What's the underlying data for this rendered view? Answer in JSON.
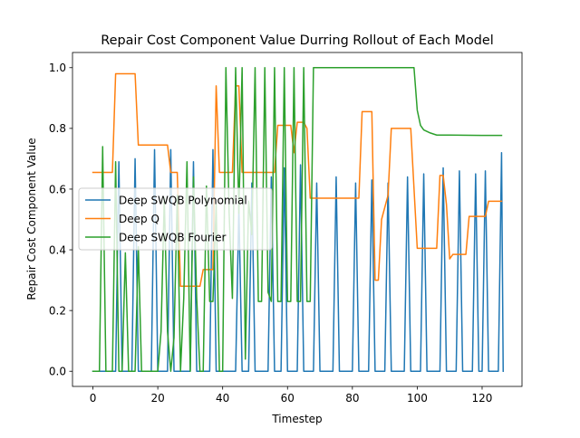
{
  "chart_data": {
    "type": "line",
    "title": "Repair Cost Component Value Durring Rollout of Each Model",
    "xlabel": "Timestep",
    "ylabel": "Repair Cost Component Value",
    "xlim": [
      -6.3,
      132.3
    ],
    "ylim": [
      -0.05,
      1.05
    ],
    "xticks": [
      0,
      20,
      40,
      60,
      80,
      100,
      120
    ],
    "yticks": [
      0.0,
      0.2,
      0.4,
      0.6,
      0.8,
      1.0
    ],
    "xtick_labels": [
      "0",
      "20",
      "40",
      "60",
      "80",
      "100",
      "120"
    ],
    "ytick_labels": [
      "0.0",
      "0.2",
      "0.4",
      "0.6",
      "0.8",
      "1.0"
    ],
    "grid": false,
    "legend": "center-left",
    "series": [
      {
        "name": "Deep SWQB Polynomial",
        "color": "#1f77b4",
        "points": [
          [
            0,
            0
          ],
          [
            2,
            0
          ],
          [
            3,
            0
          ],
          [
            6,
            0
          ],
          [
            7,
            0
          ],
          [
            8,
            0.69
          ],
          [
            9,
            0
          ],
          [
            12,
            0
          ],
          [
            13,
            0.7
          ],
          [
            14,
            0
          ],
          [
            18,
            0
          ],
          [
            19,
            0.73
          ],
          [
            20,
            0
          ],
          [
            23,
            0
          ],
          [
            24,
            0.73
          ],
          [
            25,
            0
          ],
          [
            30,
            0
          ],
          [
            31,
            0.69
          ],
          [
            32,
            0
          ],
          [
            36,
            0
          ],
          [
            37,
            0.73
          ],
          [
            38,
            0
          ],
          [
            44,
            0
          ],
          [
            45,
            0.54
          ],
          [
            46,
            0
          ],
          [
            48,
            0
          ],
          [
            49,
            0.62
          ],
          [
            50,
            0
          ],
          [
            54,
            0
          ],
          [
            55,
            0.64
          ],
          [
            56,
            0
          ],
          [
            58,
            0
          ],
          [
            59,
            0.67
          ],
          [
            60,
            0
          ],
          [
            63,
            0
          ],
          [
            64,
            0.68
          ],
          [
            65,
            0
          ],
          [
            68,
            0
          ],
          [
            69,
            0.62
          ],
          [
            70,
            0
          ],
          [
            74,
            0
          ],
          [
            75,
            0.64
          ],
          [
            76,
            0
          ],
          [
            80,
            0
          ],
          [
            81,
            0.62
          ],
          [
            82,
            0
          ],
          [
            85,
            0
          ],
          [
            86,
            0.63
          ],
          [
            87,
            0
          ],
          [
            90,
            0
          ],
          [
            91,
            0.62
          ],
          [
            92,
            0
          ],
          [
            96,
            0
          ],
          [
            97,
            0.64
          ],
          [
            98,
            0
          ],
          [
            101,
            0
          ],
          [
            102,
            0.65
          ],
          [
            103,
            0
          ],
          [
            107,
            0
          ],
          [
            108,
            0.67
          ],
          [
            109,
            0
          ],
          [
            112,
            0
          ],
          [
            113,
            0.66
          ],
          [
            114,
            0
          ],
          [
            117,
            0
          ],
          [
            118,
            0.65
          ],
          [
            119,
            0
          ],
          [
            120,
            0
          ],
          [
            121,
            0.66
          ],
          [
            122,
            0
          ],
          [
            125,
            0
          ],
          [
            126,
            0.72
          ],
          [
            126.5,
            0
          ]
        ]
      },
      {
        "name": "Deep Q",
        "color": "#ff7f0e",
        "points": [
          [
            0,
            0.655
          ],
          [
            6,
            0.655
          ],
          [
            7,
            0.98
          ],
          [
            13,
            0.98
          ],
          [
            14,
            0.745
          ],
          [
            23,
            0.745
          ],
          [
            24,
            0.655
          ],
          [
            26,
            0.655
          ],
          [
            27,
            0.28
          ],
          [
            33,
            0.28
          ],
          [
            34,
            0.335
          ],
          [
            36,
            0.335
          ],
          [
            37,
            0.335
          ],
          [
            38,
            0.94
          ],
          [
            39,
            0.655
          ],
          [
            43,
            0.655
          ],
          [
            44,
            0.94
          ],
          [
            45,
            0.94
          ],
          [
            46,
            0.655
          ],
          [
            56,
            0.655
          ],
          [
            57,
            0.81
          ],
          [
            61,
            0.81
          ],
          [
            62,
            0.72
          ],
          [
            63,
            0.82
          ],
          [
            65,
            0.82
          ],
          [
            66,
            0.8
          ],
          [
            67,
            0.57
          ],
          [
            82,
            0.57
          ],
          [
            83,
            0.855
          ],
          [
            86,
            0.855
          ],
          [
            87,
            0.3
          ],
          [
            88,
            0.3
          ],
          [
            89,
            0.5
          ],
          [
            91,
            0.58
          ],
          [
            92,
            0.8
          ],
          [
            98,
            0.8
          ],
          [
            100,
            0.405
          ],
          [
            106,
            0.405
          ],
          [
            107,
            0.645
          ],
          [
            108,
            0.645
          ],
          [
            109,
            0.55
          ],
          [
            110,
            0.37
          ],
          [
            111,
            0.385
          ],
          [
            115,
            0.385
          ],
          [
            116,
            0.51
          ],
          [
            121,
            0.51
          ],
          [
            122,
            0.56
          ],
          [
            126,
            0.56
          ]
        ]
      },
      {
        "name": "Deep SWQB Fourier",
        "color": "#2ca02c",
        "points": [
          [
            0,
            0
          ],
          [
            2,
            0
          ],
          [
            3,
            0.74
          ],
          [
            4,
            0
          ],
          [
            6,
            0
          ],
          [
            7,
            0.69
          ],
          [
            8,
            0
          ],
          [
            9,
            0
          ],
          [
            10,
            0.39
          ],
          [
            11,
            0
          ],
          [
            13,
            0
          ],
          [
            14,
            0.41
          ],
          [
            15,
            0
          ],
          [
            20,
            0
          ],
          [
            21,
            0.13
          ],
          [
            22,
            0.57
          ],
          [
            23,
            0.13
          ],
          [
            24,
            0
          ],
          [
            25,
            0.11
          ],
          [
            26,
            0.58
          ],
          [
            27,
            0
          ],
          [
            28,
            0.24
          ],
          [
            29,
            0.69
          ],
          [
            30,
            0
          ],
          [
            31,
            0.64
          ],
          [
            32,
            0.24
          ],
          [
            33,
            0
          ],
          [
            34,
            0
          ],
          [
            35,
            0.61
          ],
          [
            36,
            0.23
          ],
          [
            37,
            0.23
          ],
          [
            38,
            0.55
          ],
          [
            39,
            0
          ],
          [
            40,
            0
          ],
          [
            41,
            1.0
          ],
          [
            42,
            0.52
          ],
          [
            43,
            0.24
          ],
          [
            44,
            1.0
          ],
          [
            45,
            0.52
          ],
          [
            46,
            1.0
          ],
          [
            47,
            0.04
          ],
          [
            48,
            0.56
          ],
          [
            49,
            0.45
          ],
          [
            50,
            1.0
          ],
          [
            51,
            0.23
          ],
          [
            52,
            0.23
          ],
          [
            53,
            1.0
          ],
          [
            54,
            0.26
          ],
          [
            55,
            0.23
          ],
          [
            56,
            1.0
          ],
          [
            57,
            0.23
          ],
          [
            58,
            0.23
          ],
          [
            59,
            1.0
          ],
          [
            60,
            0.23
          ],
          [
            61,
            0.23
          ],
          [
            62,
            1.0
          ],
          [
            63,
            0.23
          ],
          [
            64,
            0.23
          ],
          [
            65,
            1.0
          ],
          [
            66,
            0.23
          ],
          [
            67,
            0.23
          ],
          [
            68,
            1.0
          ],
          [
            70,
            1.0
          ],
          [
            99,
            1.0
          ],
          [
            100,
            0.86
          ],
          [
            101,
            0.81
          ],
          [
            102,
            0.795
          ],
          [
            104,
            0.785
          ],
          [
            106,
            0.778
          ],
          [
            110,
            0.778
          ],
          [
            120,
            0.777
          ],
          [
            126,
            0.777
          ]
        ]
      }
    ]
  }
}
